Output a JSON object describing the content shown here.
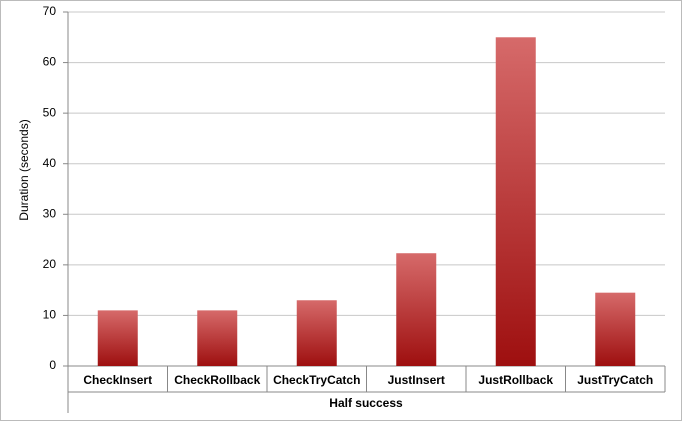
{
  "chart_data": {
    "type": "bar",
    "x_label": "Half success",
    "y_label": "Duration (seconds)",
    "categories": [
      "CheckInsert",
      "CheckRollback",
      "CheckTryCatch",
      "JustInsert",
      "JustRollback",
      "JustTryCatch"
    ],
    "values": [
      11,
      11,
      13,
      22.3,
      65,
      14.5
    ],
    "color": "#9e0f0f",
    "ylim": [
      0,
      70
    ],
    "yticks": [
      0,
      10,
      20,
      30,
      40,
      50,
      60,
      70
    ],
    "grid": true
  }
}
